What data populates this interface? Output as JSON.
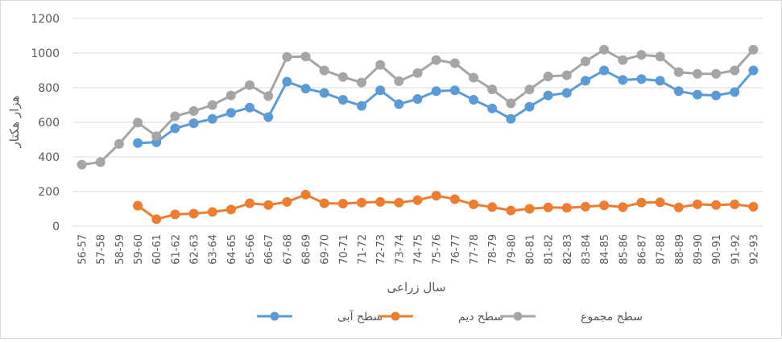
{
  "chart_data": {
    "type": "line",
    "xlabel": "سال زراعی",
    "ylabel": "هزار هکتار",
    "ylim": [
      0,
      1200
    ],
    "yticks": [
      0,
      200,
      400,
      600,
      800,
      1000,
      1200
    ],
    "grid": true,
    "legend_position": "bottom",
    "categories": [
      "56-57",
      "57-58",
      "58-59",
      "59-60",
      "60-61",
      "61-62",
      "62-63",
      "63-64",
      "64-65",
      "65-66",
      "66-67",
      "67-68",
      "68-69",
      "69-70",
      "70-71",
      "71-72",
      "72-73",
      "73-74",
      "74-75",
      "75-76",
      "76-77",
      "77-78",
      "78-79",
      "79-80",
      "80-81",
      "81-82",
      "82-83",
      "83-84",
      "84-85",
      "85-86",
      "86-87",
      "87-88",
      "88-89",
      "89-90",
      "90-91",
      "91-92",
      "92-93"
    ],
    "series": [
      {
        "name": "سطح آبی",
        "color": "#5B9BD5",
        "values": [
          null,
          null,
          null,
          480,
          485,
          565,
          595,
          620,
          655,
          685,
          630,
          835,
          795,
          770,
          730,
          695,
          785,
          705,
          735,
          780,
          785,
          730,
          680,
          620,
          690,
          755,
          770,
          840,
          900,
          845,
          850,
          840,
          780,
          760,
          755,
          775,
          900
        ]
      },
      {
        "name": "سطح دیم",
        "color": "#ED7D31",
        "values": [
          null,
          null,
          null,
          118,
          40,
          68,
          72,
          82,
          96,
          132,
          122,
          140,
          182,
          132,
          130,
          136,
          140,
          136,
          150,
          176,
          156,
          126,
          110,
          90,
          100,
          108,
          106,
          112,
          120,
          110,
          136,
          138,
          108,
          126,
          122,
          126,
          112
        ]
      },
      {
        "name": "سطح مجموع",
        "color": "#A5A5A5",
        "values": [
          355,
          370,
          475,
          598,
          520,
          635,
          665,
          700,
          755,
          815,
          752,
          978,
          980,
          900,
          862,
          830,
          932,
          838,
          885,
          960,
          942,
          858,
          790,
          710,
          790,
          865,
          872,
          952,
          1020,
          960,
          990,
          980,
          890,
          880,
          880,
          900,
          1020
        ]
      }
    ]
  }
}
